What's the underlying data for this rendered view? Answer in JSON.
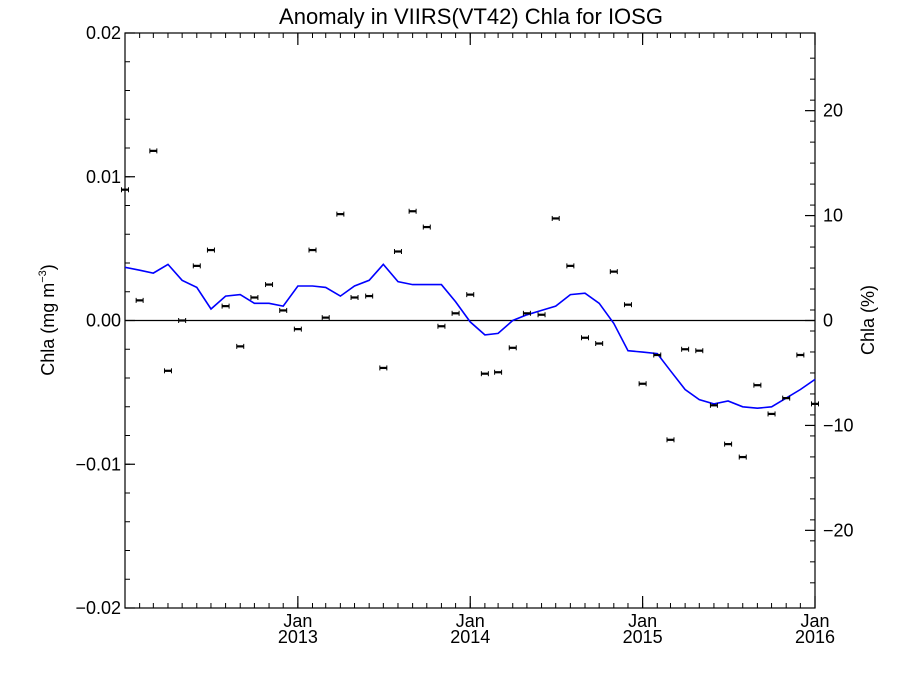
{
  "chart_data": {
    "type": "scatter",
    "title": "Anomaly in VIIRS(VT42) Chla for IOSG",
    "ylabel_left_main": "Chla (mg m",
    "ylabel_left_sup": "−3",
    "ylabel_left_close": ")",
    "ylabel_right": "Chla (%)",
    "ylim": [
      -0.02,
      0.02
    ],
    "ylim_right": [
      -27.4,
      27.4
    ],
    "xlim": [
      "2012-01-01",
      "2016-01-01"
    ],
    "left_ticks": [
      {
        "value": 0.02,
        "label": "0.02"
      },
      {
        "value": 0.01,
        "label": "0.01"
      },
      {
        "value": 0.0,
        "label": "0.00"
      },
      {
        "value": -0.01,
        "label": "−0.01"
      },
      {
        "value": -0.02,
        "label": "−0.02"
      }
    ],
    "right_ticks": [
      {
        "value": 20,
        "label": "20"
      },
      {
        "value": 10,
        "label": "10"
      },
      {
        "value": 0,
        "label": "0"
      },
      {
        "value": -10,
        "label": "−10"
      },
      {
        "value": -20,
        "label": "−20"
      }
    ],
    "x_ticks": [
      {
        "date": "2013-01-01",
        "month": "Jan",
        "year": "2013"
      },
      {
        "date": "2014-01-01",
        "month": "Jan",
        "year": "2014"
      },
      {
        "date": "2015-01-01",
        "month": "Jan",
        "year": "2015"
      },
      {
        "date": "2016-01-01",
        "month": "Jan",
        "year": "2016"
      }
    ],
    "zero_line": true,
    "series": [
      {
        "kind": "points_with_error_bars",
        "color": "#000000",
        "points": [
          {
            "x": "2012-01-01",
            "y": 0.0091
          },
          {
            "x": "2012-02-01",
            "y": 0.0014
          },
          {
            "x": "2012-03-01",
            "y": 0.0118
          },
          {
            "x": "2012-04-01",
            "y": -0.0035
          },
          {
            "x": "2012-05-01",
            "y": 0.0
          },
          {
            "x": "2012-06-01",
            "y": 0.0038
          },
          {
            "x": "2012-07-01",
            "y": 0.0049
          },
          {
            "x": "2012-08-01",
            "y": 0.001
          },
          {
            "x": "2012-09-01",
            "y": -0.0018
          },
          {
            "x": "2012-10-01",
            "y": 0.0016
          },
          {
            "x": "2012-11-01",
            "y": 0.0025
          },
          {
            "x": "2012-12-01",
            "y": 0.0007
          },
          {
            "x": "2013-01-01",
            "y": -0.0006
          },
          {
            "x": "2013-02-01",
            "y": 0.0049
          },
          {
            "x": "2013-03-01",
            "y": 0.0002
          },
          {
            "x": "2013-04-01",
            "y": 0.0074
          },
          {
            "x": "2013-05-01",
            "y": 0.0016
          },
          {
            "x": "2013-06-01",
            "y": 0.0017
          },
          {
            "x": "2013-07-01",
            "y": -0.0033
          },
          {
            "x": "2013-08-01",
            "y": 0.0048
          },
          {
            "x": "2013-09-01",
            "y": 0.0076
          },
          {
            "x": "2013-10-01",
            "y": 0.0065
          },
          {
            "x": "2013-11-01",
            "y": -0.0004
          },
          {
            "x": "2013-12-01",
            "y": 0.0005
          },
          {
            "x": "2014-01-01",
            "y": 0.0018
          },
          {
            "x": "2014-02-01",
            "y": -0.0037
          },
          {
            "x": "2014-03-01",
            "y": -0.0036
          },
          {
            "x": "2014-04-01",
            "y": -0.0019
          },
          {
            "x": "2014-05-01",
            "y": 0.0005
          },
          {
            "x": "2014-06-01",
            "y": 0.0004
          },
          {
            "x": "2014-07-01",
            "y": 0.0071
          },
          {
            "x": "2014-08-01",
            "y": 0.0038
          },
          {
            "x": "2014-09-01",
            "y": -0.0012
          },
          {
            "x": "2014-10-01",
            "y": -0.0016
          },
          {
            "x": "2014-11-01",
            "y": 0.0034
          },
          {
            "x": "2014-12-01",
            "y": 0.0011
          },
          {
            "x": "2015-01-01",
            "y": -0.0044
          },
          {
            "x": "2015-02-01",
            "y": -0.0024
          },
          {
            "x": "2015-03-01",
            "y": -0.0083
          },
          {
            "x": "2015-04-01",
            "y": -0.002
          },
          {
            "x": "2015-05-01",
            "y": -0.0021
          },
          {
            "x": "2015-06-01",
            "y": -0.0059
          },
          {
            "x": "2015-07-01",
            "y": -0.0086
          },
          {
            "x": "2015-08-01",
            "y": -0.0095
          },
          {
            "x": "2015-09-01",
            "y": -0.0045
          },
          {
            "x": "2015-10-01",
            "y": -0.0065
          },
          {
            "x": "2015-11-01",
            "y": -0.0054
          },
          {
            "x": "2015-12-01",
            "y": -0.0024
          },
          {
            "x": "2016-01-01",
            "y": -0.0058
          }
        ]
      },
      {
        "kind": "line",
        "color": "#0000ff",
        "points": [
          {
            "x": "2012-01-01",
            "y": 0.0037
          },
          {
            "x": "2012-02-01",
            "y": 0.0035
          },
          {
            "x": "2012-03-01",
            "y": 0.0033
          },
          {
            "x": "2012-04-01",
            "y": 0.0039
          },
          {
            "x": "2012-05-01",
            "y": 0.0028
          },
          {
            "x": "2012-06-01",
            "y": 0.0023
          },
          {
            "x": "2012-07-01",
            "y": 0.0008
          },
          {
            "x": "2012-08-01",
            "y": 0.0017
          },
          {
            "x": "2012-09-01",
            "y": 0.0018
          },
          {
            "x": "2012-10-01",
            "y": 0.0012
          },
          {
            "x": "2012-11-01",
            "y": 0.0012
          },
          {
            "x": "2012-12-01",
            "y": 0.001
          },
          {
            "x": "2013-01-01",
            "y": 0.0024
          },
          {
            "x": "2013-02-01",
            "y": 0.0024
          },
          {
            "x": "2013-03-01",
            "y": 0.0023
          },
          {
            "x": "2013-04-01",
            "y": 0.0017
          },
          {
            "x": "2013-05-01",
            "y": 0.0024
          },
          {
            "x": "2013-06-01",
            "y": 0.0028
          },
          {
            "x": "2013-07-01",
            "y": 0.0039
          },
          {
            "x": "2013-08-01",
            "y": 0.0027
          },
          {
            "x": "2013-09-01",
            "y": 0.0025
          },
          {
            "x": "2013-10-01",
            "y": 0.0025
          },
          {
            "x": "2013-11-01",
            "y": 0.0025
          },
          {
            "x": "2013-12-01",
            "y": 0.0013
          },
          {
            "x": "2014-01-01",
            "y": -0.0001
          },
          {
            "x": "2014-02-01",
            "y": -0.001
          },
          {
            "x": "2014-03-01",
            "y": -0.0009
          },
          {
            "x": "2014-04-01",
            "y": 0.0
          },
          {
            "x": "2014-05-01",
            "y": 0.0004
          },
          {
            "x": "2014-06-01",
            "y": 0.0007
          },
          {
            "x": "2014-07-01",
            "y": 0.001
          },
          {
            "x": "2014-08-01",
            "y": 0.0018
          },
          {
            "x": "2014-09-01",
            "y": 0.0019
          },
          {
            "x": "2014-10-01",
            "y": 0.0012
          },
          {
            "x": "2014-11-01",
            "y": -0.0002
          },
          {
            "x": "2014-12-01",
            "y": -0.0021
          },
          {
            "x": "2015-01-01",
            "y": -0.0022
          },
          {
            "x": "2015-02-01",
            "y": -0.0023
          },
          {
            "x": "2015-03-01",
            "y": -0.0035
          },
          {
            "x": "2015-04-01",
            "y": -0.0048
          },
          {
            "x": "2015-05-01",
            "y": -0.0055
          },
          {
            "x": "2015-06-01",
            "y": -0.0058
          },
          {
            "x": "2015-07-01",
            "y": -0.0056
          },
          {
            "x": "2015-08-01",
            "y": -0.006
          },
          {
            "x": "2015-09-01",
            "y": -0.0061
          },
          {
            "x": "2015-10-01",
            "y": -0.006
          },
          {
            "x": "2015-11-01",
            "y": -0.0054
          },
          {
            "x": "2015-12-01",
            "y": -0.0048
          },
          {
            "x": "2016-01-01",
            "y": -0.0041
          }
        ]
      }
    ]
  }
}
